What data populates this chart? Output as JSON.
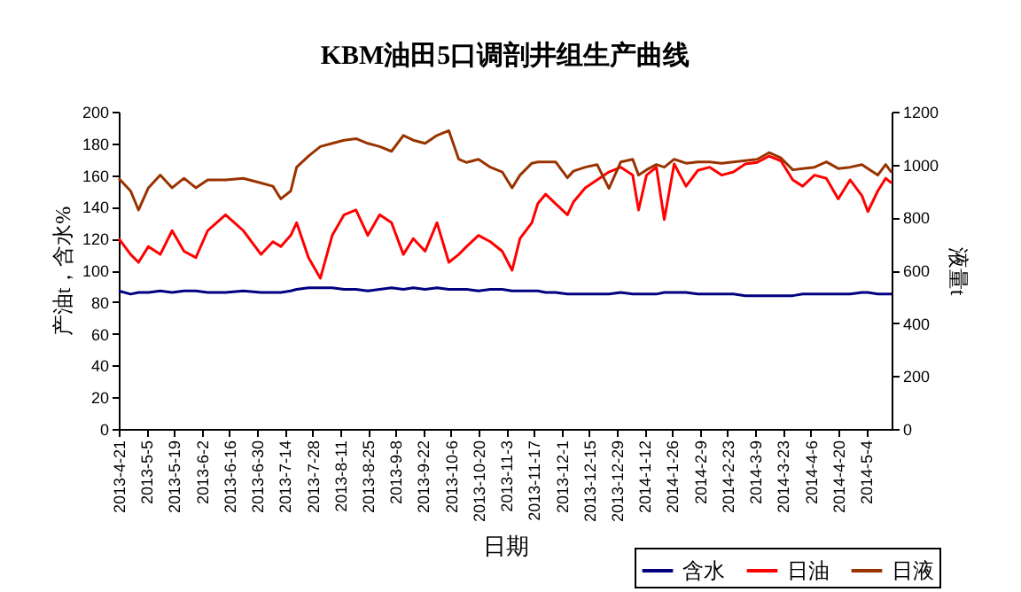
{
  "chart_data": {
    "type": "line",
    "title": "KBM油田5口调剖井组生产曲线",
    "xlabel": "日期",
    "ylabel": "产油t，含水%",
    "y2label": "液量t",
    "x": [
      "2013-04-21",
      "2013-04-27",
      "2013-05-01",
      "2013-05-06",
      "2013-05-12",
      "2013-05-18",
      "2013-05-24",
      "2013-05-30",
      "2013-06-05",
      "2013-06-14",
      "2013-06-23",
      "2013-07-02",
      "2013-07-08",
      "2013-07-12",
      "2013-07-17",
      "2013-07-20",
      "2013-07-26",
      "2013-08-01",
      "2013-08-07",
      "2013-08-13",
      "2013-08-19",
      "2013-08-25",
      "2013-08-31",
      "2013-09-06",
      "2013-09-12",
      "2013-09-17",
      "2013-09-23",
      "2013-09-29",
      "2013-10-05",
      "2013-10-10",
      "2013-10-14",
      "2013-10-20",
      "2013-10-26",
      "2013-11-01",
      "2013-11-06",
      "2013-11-10",
      "2013-11-16",
      "2013-11-19",
      "2013-11-23",
      "2013-11-28",
      "2013-12-04",
      "2013-12-07",
      "2013-12-13",
      "2013-12-19",
      "2013-12-25",
      "2013-12-31",
      "2014-01-06",
      "2014-01-09",
      "2014-01-13",
      "2014-01-18",
      "2014-01-22",
      "2014-01-27",
      "2014-02-02",
      "2014-02-08",
      "2014-02-14",
      "2014-02-20",
      "2014-02-26",
      "2014-03-04",
      "2014-03-10",
      "2014-03-16",
      "2014-03-22",
      "2014-03-28",
      "2014-04-02",
      "2014-04-08",
      "2014-04-14",
      "2014-04-20",
      "2014-04-26",
      "2014-05-02",
      "2014-05-05",
      "2014-05-10",
      "2014-05-14",
      "2014-05-17"
    ],
    "series": [
      {
        "name": "含水",
        "color": "#000080",
        "values": [
          87,
          85,
          86,
          86,
          87,
          86,
          87,
          87,
          86,
          86,
          87,
          86,
          86,
          86,
          87,
          88,
          89,
          89,
          89,
          88,
          88,
          87,
          88,
          89,
          88,
          89,
          88,
          89,
          88,
          88,
          88,
          87,
          88,
          88,
          87,
          87,
          87,
          87,
          86,
          86,
          85,
          85,
          85,
          85,
          85,
          86,
          85,
          85,
          85,
          85,
          86,
          86,
          86,
          85,
          85,
          85,
          85,
          84,
          84,
          84,
          84,
          84,
          85,
          85,
          85,
          85,
          85,
          86,
          86,
          85,
          85,
          85
        ]
      },
      {
        "name": "日油",
        "color": "#ff0000",
        "values": [
          120,
          110,
          105,
          115,
          110,
          125,
          112,
          108,
          125,
          135,
          125,
          110,
          118,
          115,
          122,
          130,
          108,
          95,
          122,
          135,
          138,
          122,
          135,
          130,
          110,
          120,
          112,
          130,
          105,
          110,
          115,
          122,
          118,
          112,
          100,
          120,
          130,
          142,
          148,
          142,
          135,
          143,
          152,
          157,
          162,
          165,
          160,
          138,
          160,
          165,
          132,
          167,
          153,
          163,
          165,
          160,
          162,
          167,
          168,
          172,
          169,
          157,
          153,
          160,
          158,
          145,
          157,
          147,
          137,
          150,
          158,
          155
        ]
      },
      {
        "name": "日液",
        "color": "#993300",
        "axis": "y2",
        "values": [
          948,
          900,
          828,
          912,
          960,
          912,
          948,
          912,
          942,
          942,
          948,
          930,
          918,
          870,
          900,
          990,
          1032,
          1068,
          1080,
          1092,
          1098,
          1080,
          1068,
          1050,
          1110,
          1092,
          1080,
          1110,
          1128,
          1020,
          1008,
          1020,
          990,
          972,
          912,
          960,
          1005,
          1010,
          1010,
          1010,
          950,
          975,
          990,
          1000,
          910,
          1010,
          1020,
          960,
          980,
          1000,
          990,
          1020,
          1005,
          1010,
          1010,
          1005,
          1010,
          1015,
          1020,
          1045,
          1025,
          980,
          985,
          990,
          1010,
          985,
          990,
          1000,
          985,
          960,
          1000,
          970
        ]
      }
    ],
    "xlim": [
      "2013-04-21",
      "2014-05-17"
    ],
    "xticks": [
      {
        "value": "2013-04-21",
        "label": "2013-4-21"
      },
      {
        "value": "2013-05-05",
        "label": "2013-5-5"
      },
      {
        "value": "2013-05-19",
        "label": "2013-5-19"
      },
      {
        "value": "2013-06-02",
        "label": "2013-6-2"
      },
      {
        "value": "2013-06-16",
        "label": "2013-6-16"
      },
      {
        "value": "2013-06-30",
        "label": "2013-6-30"
      },
      {
        "value": "2013-07-14",
        "label": "2013-7-14"
      },
      {
        "value": "2013-07-28",
        "label": "2013-7-28"
      },
      {
        "value": "2013-08-11",
        "label": "2013-8-11"
      },
      {
        "value": "2013-08-25",
        "label": "2013-8-25"
      },
      {
        "value": "2013-09-08",
        "label": "2013-9-8"
      },
      {
        "value": "2013-09-22",
        "label": "2013-9-22"
      },
      {
        "value": "2013-10-06",
        "label": "2013-10-6"
      },
      {
        "value": "2013-10-20",
        "label": "2013-10-20"
      },
      {
        "value": "2013-11-03",
        "label": "2013-11-3"
      },
      {
        "value": "2013-11-17",
        "label": "2013-11-17"
      },
      {
        "value": "2013-12-01",
        "label": "2013-12-1"
      },
      {
        "value": "2013-12-15",
        "label": "2013-12-15"
      },
      {
        "value": "2013-12-29",
        "label": "2013-12-29"
      },
      {
        "value": "2014-01-12",
        "label": "2014-1-12"
      },
      {
        "value": "2014-01-26",
        "label": "2014-1-26"
      },
      {
        "value": "2014-02-09",
        "label": "2014-2-9"
      },
      {
        "value": "2014-02-23",
        "label": "2014-2-23"
      },
      {
        "value": "2014-03-09",
        "label": "2014-3-9"
      },
      {
        "value": "2014-03-23",
        "label": "2014-3-23"
      },
      {
        "value": "2014-04-06",
        "label": "2014-4-6"
      },
      {
        "value": "2014-04-20",
        "label": "2014-4-20"
      },
      {
        "value": "2014-05-04",
        "label": "2014-5-4"
      }
    ],
    "ylim": [
      0,
      200
    ],
    "yticks": [
      0,
      20,
      40,
      60,
      80,
      100,
      120,
      140,
      160,
      180,
      200
    ],
    "y2lim": [
      0,
      1200
    ],
    "y2ticks": [
      0,
      200,
      400,
      600,
      800,
      1000,
      1200
    ],
    "legend": "bottom right"
  }
}
